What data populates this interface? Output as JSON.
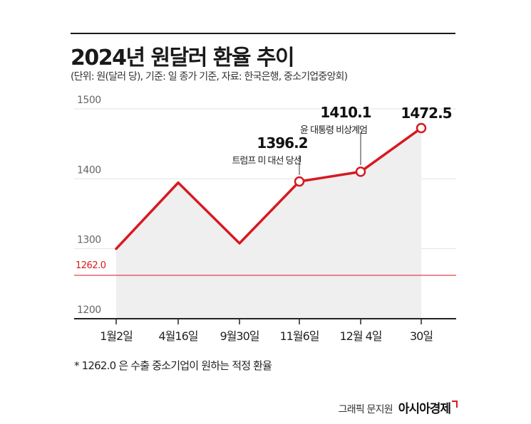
{
  "header": {
    "title": "2024년 원달러 환율 추이",
    "subtitle": "(단위: 원(달러 당), 기준: 일 종가 기준, 자료: 한국은행, 중소기업중앙회)"
  },
  "chart_data": {
    "type": "line",
    "title": "2024년 원달러 환율 추이",
    "xlabel": "",
    "ylabel": "",
    "ylim": [
      1200,
      1500
    ],
    "yticks": [
      "1500",
      "1400",
      "1300",
      "1200"
    ],
    "categories": [
      "1월2일",
      "4월16일",
      "9월30일",
      "11월6일",
      "12월 4일",
      "30일"
    ],
    "series": [
      {
        "values": [
          1300.0,
          1394.5,
          1307.8,
          1396.2,
          1410.1,
          1472.5
        ]
      }
    ],
    "marked_points": [
      3,
      4,
      5
    ],
    "data_labels": [
      {
        "index": 3,
        "value": "1396.2",
        "note": "트럼프 미 대선 당선"
      },
      {
        "index": 4,
        "value": "1410.1",
        "note": "윤 대통령 비상계엄"
      },
      {
        "index": 5,
        "value": "1472.5",
        "note": ""
      }
    ],
    "reference_line": {
      "value": 1262.0,
      "label": "1262.0",
      "color": "#d71920"
    },
    "colors": {
      "line": "#d71920",
      "area": "#efefef",
      "grid": "#e3e3e3",
      "axis": "#222222"
    },
    "grid": true
  },
  "footnote": "* 1262.0 은 수출 중소기업이 원하는 적정 환율",
  "credit": {
    "author": "그래픽 문지원",
    "brand": "아시아경제"
  }
}
